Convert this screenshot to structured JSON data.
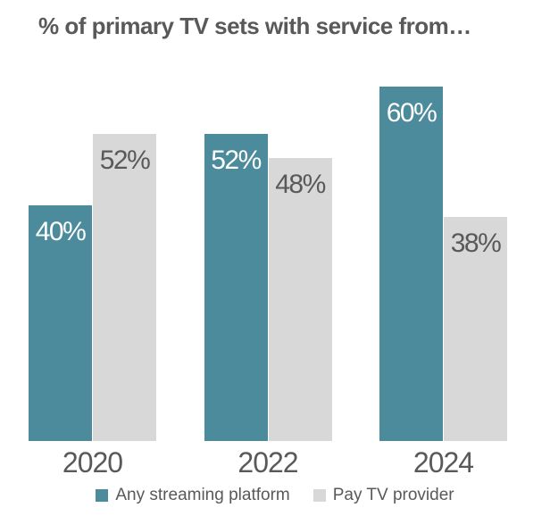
{
  "title": "% of primary TV sets with service from…",
  "colors": {
    "teal": "#4B8B9B",
    "gray": "#D8D8D8",
    "text": "#595959",
    "background": "#FFFFFF",
    "label_on_teal": "#FFFFFF"
  },
  "chart_data": {
    "type": "bar",
    "title": "% of primary TV sets with service from…",
    "categories": [
      "2020",
      "2022",
      "2024"
    ],
    "series": [
      {
        "name": "Any streaming platform",
        "color": "#4B8B9B",
        "label_color": "#FFFFFF",
        "values": [
          40,
          52,
          60
        ],
        "labels": [
          "40%",
          "52%",
          "60%"
        ]
      },
      {
        "name": "Pay TV provider",
        "color": "#D8D8D8",
        "label_color": "#595959",
        "values": [
          52,
          48,
          38
        ],
        "labels": [
          "52%",
          "48%",
          "38%"
        ]
      }
    ],
    "ylim": [
      0,
      62
    ],
    "xlabel": "",
    "ylabel": "",
    "grid": false,
    "axes_visible": false,
    "value_labels": "inside-top-centered",
    "legend_position": "bottom"
  }
}
